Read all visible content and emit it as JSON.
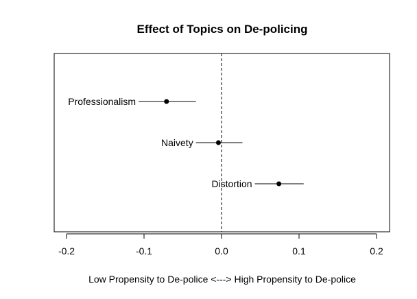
{
  "chart_data": {
    "type": "scatter",
    "subtype": "coefficient-plot-with-intervals",
    "title": "Effect of Topics on De-policing",
    "xlabel": "Low Propensity to De-police <---> High Propensity to De-police",
    "ylabel": "",
    "xlim": [
      -0.22,
      0.22
    ],
    "x_ticks": [
      -0.2,
      -0.1,
      0.0,
      0.1,
      0.2
    ],
    "x_tick_labels": [
      "-0.2",
      "-0.1",
      "0.0",
      "0.1",
      "0.2"
    ],
    "reference_line": {
      "x": 0.0,
      "style": "dashed"
    },
    "grid": false,
    "legend": "none",
    "points": [
      {
        "label": "Professionalism",
        "estimate": -0.071,
        "lower": -0.107,
        "upper": -0.033
      },
      {
        "label": "Naivety",
        "estimate": -0.004,
        "lower": -0.033,
        "upper": 0.027
      },
      {
        "label": "Distortion",
        "estimate": 0.074,
        "lower": 0.043,
        "upper": 0.106
      }
    ]
  }
}
